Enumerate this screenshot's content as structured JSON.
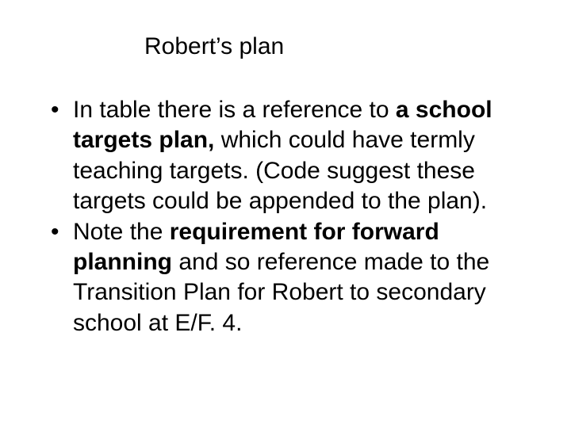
{
  "slide": {
    "title": "Robert’s plan",
    "bullets": [
      {
        "runs": [
          {
            "t": "In table there is a reference to ",
            "b": false
          },
          {
            "t": "a school targets plan,",
            "b": true
          },
          {
            "t": " which could have termly teaching targets. (Code suggest these targets could be appended to the plan).",
            "b": false
          }
        ]
      },
      {
        "runs": [
          {
            "t": "Note the ",
            "b": false
          },
          {
            "t": "requirement for forward planning",
            "b": true
          },
          {
            "t": " and so reference made to the Transition Plan for Robert to secondary school at E/F. 4.",
            "b": false
          }
        ]
      }
    ]
  },
  "style": {
    "background_color": "#ffffff",
    "text_color": "#000000",
    "title_fontsize": 30,
    "body_fontsize": 30,
    "font_family": "Arial"
  }
}
